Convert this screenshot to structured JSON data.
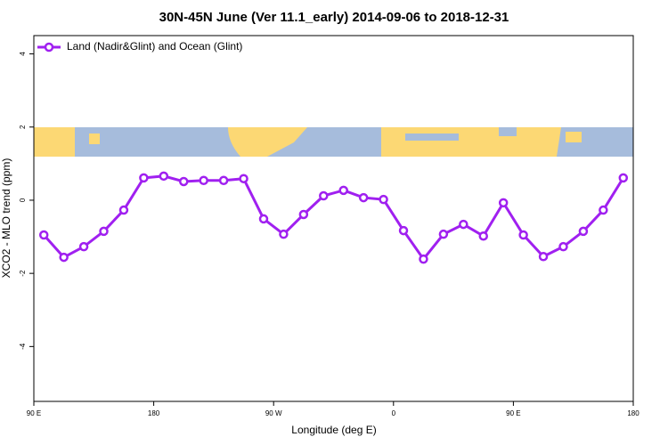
{
  "chart_data": {
    "type": "line",
    "title": "30N-45N June (Ver 11.1_early)   2014-09-06 to 2018-12-31",
    "x_label": "Longitude (deg E)",
    "y_label": "XCO2 - MLO trend (ppm)",
    "x": [
      97.5,
      112.5,
      127.5,
      142.5,
      157.5,
      172.5,
      187.5,
      202.5,
      217.5,
      232.5,
      247.5,
      262.5,
      277.5,
      292.5,
      307.5,
      322.5,
      337.5,
      352.5,
      367.5,
      382.5,
      397.5,
      412.5,
      427.5,
      442.5,
      457.5,
      472.5,
      487.5,
      502.5,
      517.5,
      532.5
    ],
    "series": [
      {
        "name": "Land (Nadir&Glint) and Ocean (Glint)",
        "color": "#a020f0",
        "values": [
          -0.95,
          -1.56,
          -1.27,
          -0.85,
          -0.27,
          0.61,
          0.66,
          0.51,
          0.54,
          0.54,
          0.59,
          -0.51,
          -0.93,
          -0.39,
          0.12,
          0.27,
          0.07,
          0.02,
          -0.83,
          -1.61,
          -0.93,
          -0.66,
          -0.98,
          -0.07,
          -0.95,
          -1.54,
          -1.27,
          -0.85,
          -0.27,
          0.61
        ]
      }
    ],
    "xlim": [
      90,
      540
    ],
    "xticks": [
      {
        "value": 90,
        "label": "90 E"
      },
      {
        "value": 180,
        "label": "180"
      },
      {
        "value": 270,
        "label": "90 W"
      },
      {
        "value": 360,
        "label": "0"
      },
      {
        "value": 450,
        "label": "90 E"
      },
      {
        "value": 540,
        "label": "180"
      }
    ],
    "ylim": [
      -5.5,
      4.5
    ],
    "yticks": [
      -4,
      -2,
      0,
      2,
      4
    ],
    "legend": "top-left"
  }
}
